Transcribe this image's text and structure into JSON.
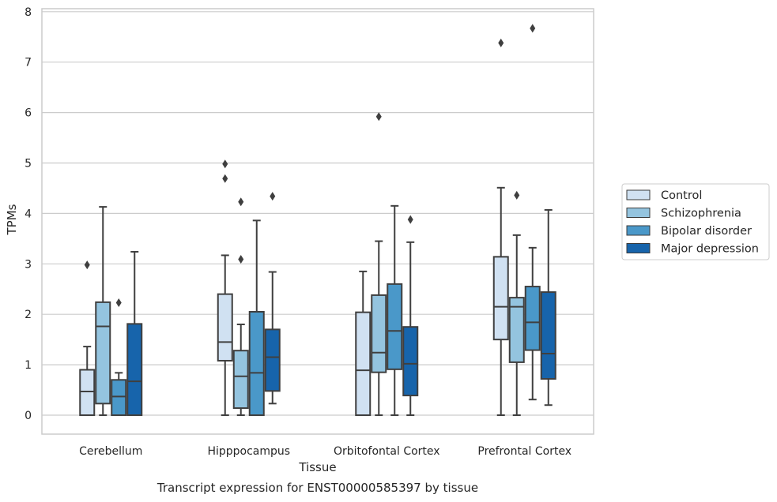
{
  "chart_data": {
    "type": "box",
    "xlabel": "Tissue",
    "ylabel": "TPMs",
    "caption": "Transcript expression for ENST00000585397 by tissue",
    "ylim": [
      -0.38,
      8.2
    ],
    "yticks": [
      0,
      1,
      2,
      3,
      4,
      5,
      6,
      7,
      8
    ],
    "grid": true,
    "legend_position": "right",
    "categories": [
      "Cerebellum",
      "Hipppocampus",
      "Orbitofontal Cortex",
      "Prefrontal Cortex"
    ],
    "series": [
      {
        "name": "Control",
        "color": "#d0e1f2",
        "boxes": [
          {
            "whislo": 0,
            "q1": 0,
            "med": 0.47,
            "q3": 0.9,
            "whishi": 1.36,
            "fliers": [
              2.98
            ]
          },
          {
            "whislo": 0,
            "q1": 1.08,
            "med": 1.45,
            "q3": 2.4,
            "whishi": 3.17,
            "fliers": [
              4.69,
              4.98
            ]
          },
          {
            "whislo": 0,
            "q1": 0,
            "med": 0.89,
            "q3": 2.04,
            "whishi": 2.85,
            "fliers": []
          },
          {
            "whislo": 0,
            "q1": 1.5,
            "med": 2.15,
            "q3": 3.14,
            "whishi": 4.51,
            "fliers": [
              7.38
            ]
          }
        ]
      },
      {
        "name": "Schizophrenia",
        "color": "#94c4df",
        "boxes": [
          {
            "whislo": 0,
            "q1": 0.23,
            "med": 1.76,
            "q3": 2.24,
            "whishi": 4.13,
            "fliers": []
          },
          {
            "whislo": 0,
            "q1": 0.14,
            "med": 0.77,
            "q3": 1.28,
            "whishi": 1.8,
            "fliers": [
              3.09,
              4.23
            ]
          },
          {
            "whislo": 0,
            "q1": 0.85,
            "med": 1.24,
            "q3": 2.38,
            "whishi": 3.45,
            "fliers": [
              5.92
            ]
          },
          {
            "whislo": 0,
            "q1": 1.05,
            "med": 2.15,
            "q3": 2.33,
            "whishi": 3.57,
            "fliers": [
              4.36
            ]
          }
        ]
      },
      {
        "name": "Bipolar disorder",
        "color": "#4a98c9",
        "boxes": [
          {
            "whislo": 0,
            "q1": 0,
            "med": 0.37,
            "q3": 0.7,
            "whishi": 0.84,
            "fliers": [
              2.23
            ]
          },
          {
            "whislo": 0,
            "q1": 0,
            "med": 0.84,
            "q3": 2.05,
            "whishi": 3.86,
            "fliers": []
          },
          {
            "whislo": 0,
            "q1": 0.91,
            "med": 1.67,
            "q3": 2.6,
            "whishi": 4.15,
            "fliers": []
          },
          {
            "whislo": 0.31,
            "q1": 1.29,
            "med": 1.84,
            "q3": 2.55,
            "whishi": 3.32,
            "fliers": [
              7.67
            ]
          }
        ]
      },
      {
        "name": "Major depression",
        "color": "#1764ab",
        "boxes": [
          {
            "whislo": 0,
            "q1": 0,
            "med": 0.67,
            "q3": 1.81,
            "whishi": 3.24,
            "fliers": []
          },
          {
            "whislo": 0.23,
            "q1": 0.48,
            "med": 1.15,
            "q3": 1.7,
            "whishi": 2.84,
            "fliers": [
              4.34
            ]
          },
          {
            "whislo": 0,
            "q1": 0.39,
            "med": 1.02,
            "q3": 1.75,
            "whishi": 3.43,
            "fliers": [
              3.88
            ]
          },
          {
            "whislo": 0.2,
            "q1": 0.72,
            "med": 1.22,
            "q3": 2.44,
            "whishi": 4.07,
            "fliers": []
          }
        ]
      }
    ]
  }
}
